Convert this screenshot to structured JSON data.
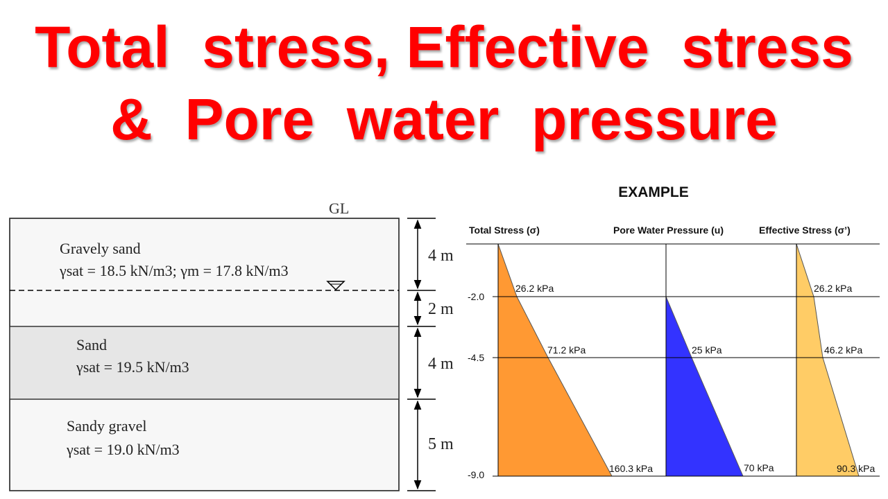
{
  "title": {
    "line1": "Total  stress, Effective  stress",
    "line2": "&  Pore  water  pressure"
  },
  "profile": {
    "ground_label": "GL",
    "layers": [
      {
        "name": "Gravely sand",
        "property": "γsat = 18.5 kN/m3; γm = 17.8 kN/m3",
        "thickness": "4 m"
      },
      {
        "name": "",
        "property": "",
        "thickness": "2 m"
      },
      {
        "name": "Sand",
        "property": "γsat = 19.5 kN/m3",
        "thickness": "4 m"
      },
      {
        "name": "Sandy gravel",
        "property": "γsat = 19.0 kN/m3",
        "thickness": "5 m"
      }
    ]
  },
  "example": {
    "heading": "EXAMPLE",
    "column_titles": [
      "Total Stress (σ)",
      "Pore Water Pressure (u)",
      "Effective Stress (σ’)"
    ],
    "depth_labels": [
      "-2.0",
      "-4.5",
      "-9.0"
    ],
    "total_stress_labels": [
      "26.2 kPa",
      "71.2 kPa",
      "160.3 kPa"
    ],
    "pore_pressure_labels": [
      "25 kPa",
      "70 kPa"
    ],
    "effective_stress_labels": [
      "26.2 kPa",
      "46.2 kPa",
      "90.3 kPa"
    ]
  },
  "colors": {
    "title": "#ff0000",
    "total_stress_fill": "#ff9933",
    "pore_pressure_fill": "#3333ff",
    "effective_stress_fill": "#ffcc66"
  }
}
